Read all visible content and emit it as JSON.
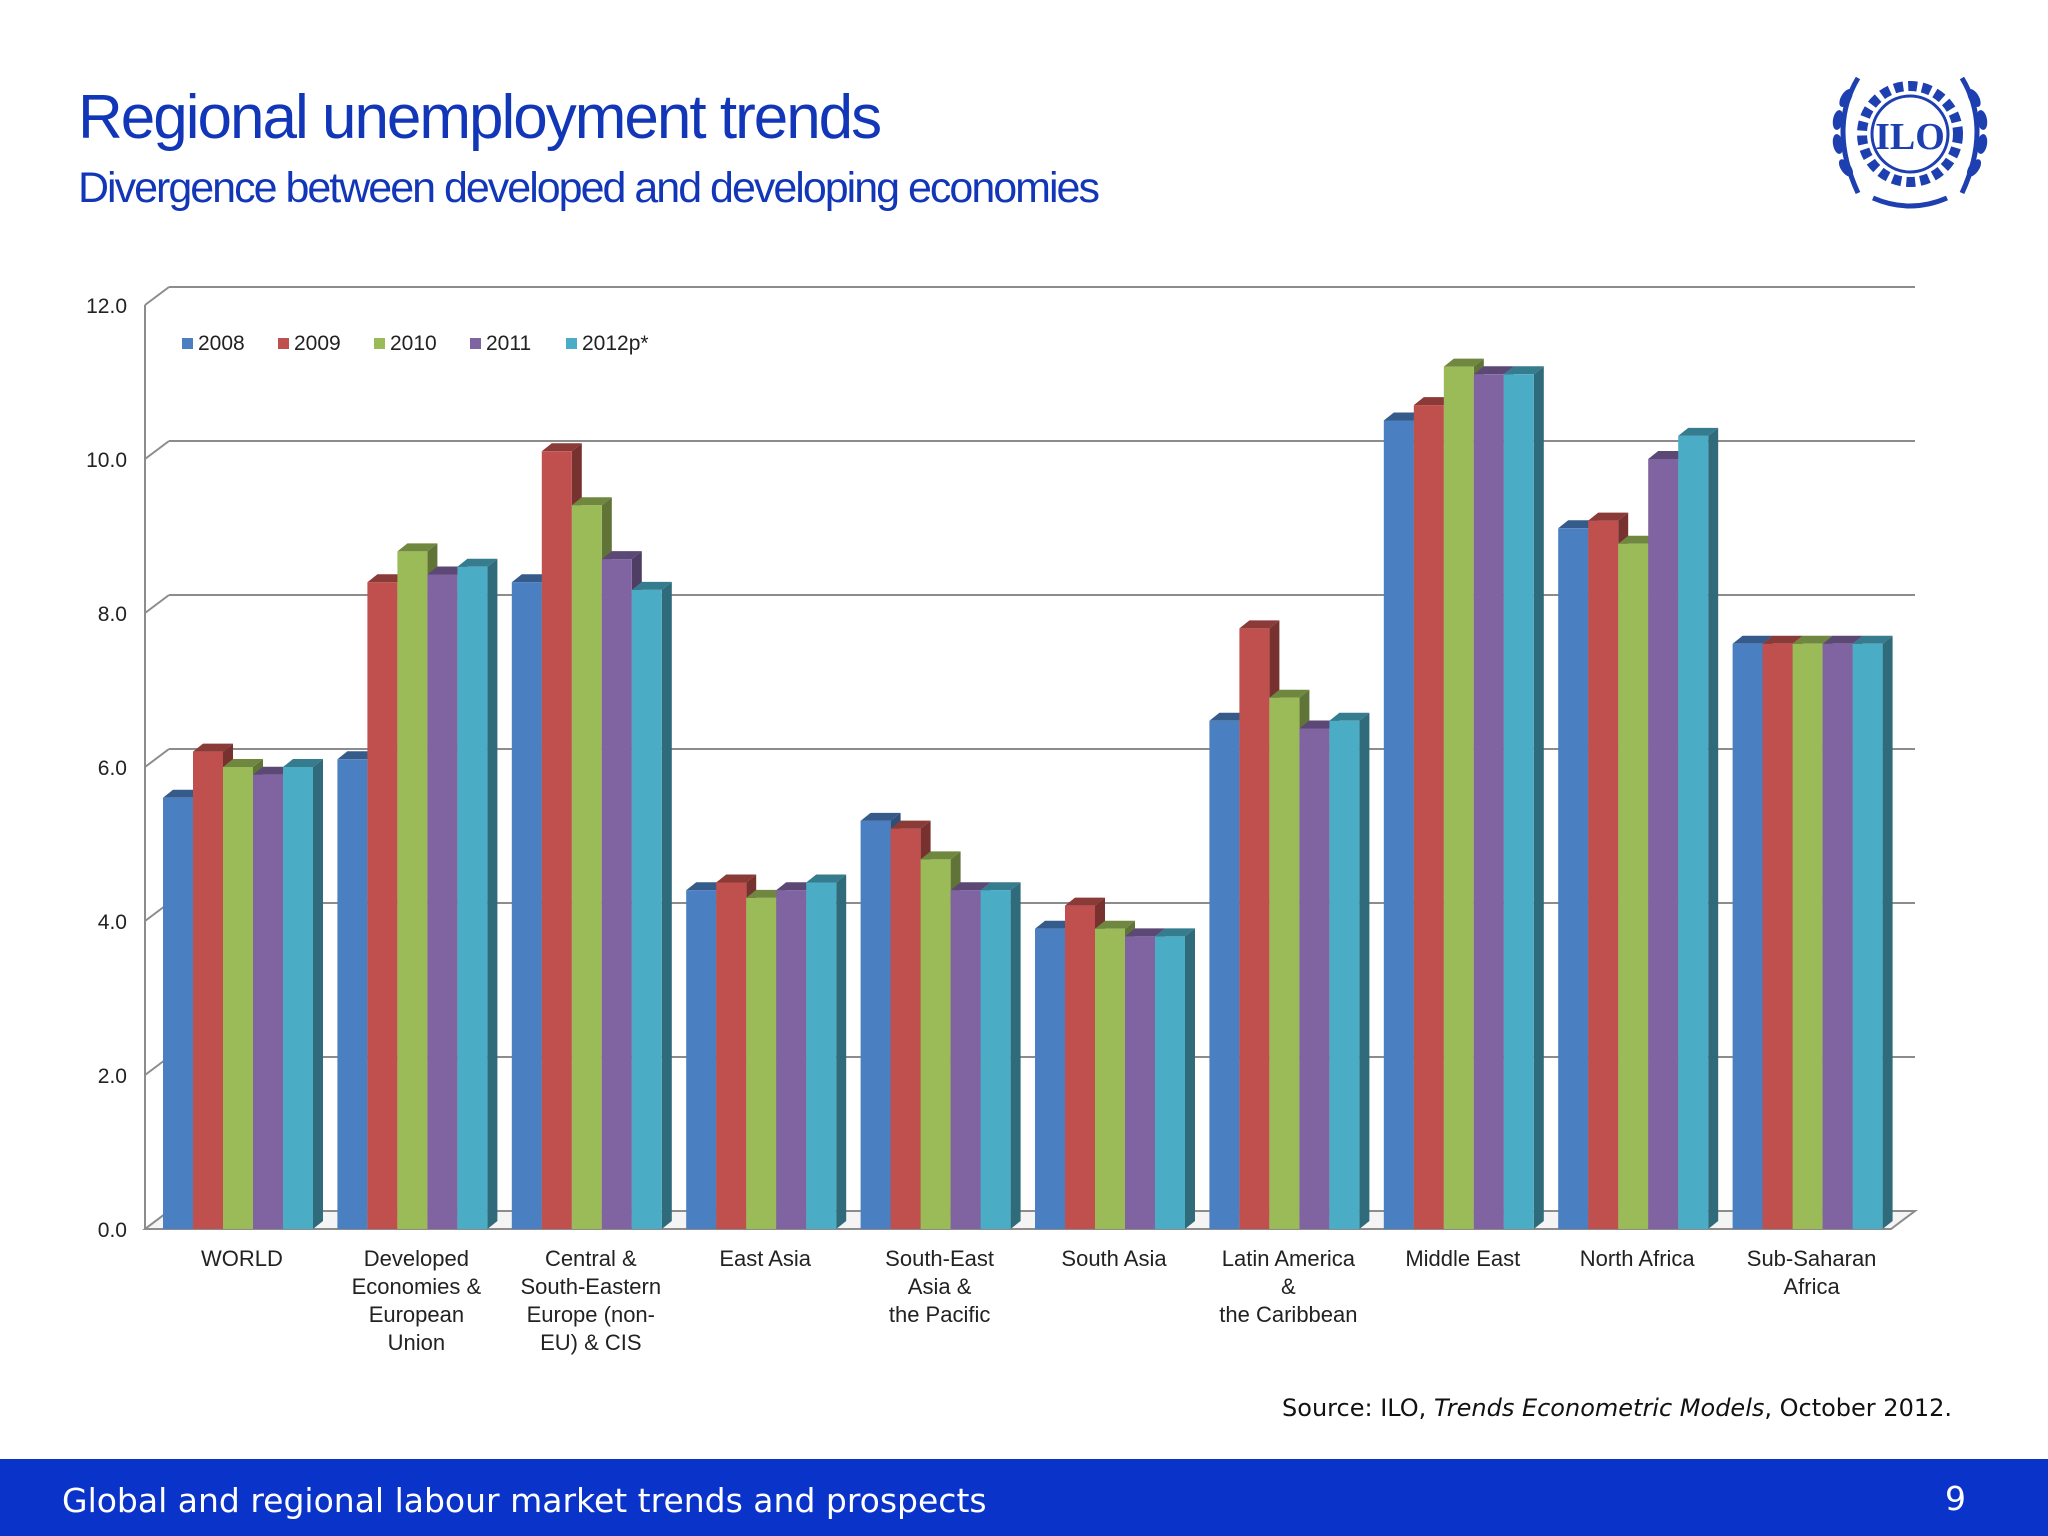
{
  "slide": {
    "title": "Regional unemployment trends",
    "subtitle": "Divergence between developed and developing economies",
    "logo_text": "ILO",
    "source_prefix": "Source: ILO, ",
    "source_italic": "Trends Econometric Models",
    "source_suffix": ", October 2012.",
    "footer_text": "Global and regional labour market trends and prospects",
    "page_number": "9"
  },
  "colors": {
    "title": "#1236b8",
    "footer": "#0a33c9",
    "series": [
      "#4a7fc1",
      "#c0504d",
      "#9bbb59",
      "#8064a2",
      "#4bacc6"
    ]
  },
  "chart_data": {
    "type": "bar",
    "style": "3d-clustered",
    "ylim": [
      0,
      12
    ],
    "yticks": [
      "0.0",
      "2.0",
      "4.0",
      "6.0",
      "8.0",
      "10.0",
      "12.0"
    ],
    "grid": true,
    "legend": "top-left",
    "categories": [
      [
        "WORLD"
      ],
      [
        "Developed",
        "Economies &",
        "European",
        "Union"
      ],
      [
        "Central &",
        "South-Eastern",
        "Europe (non-",
        "EU) & CIS"
      ],
      [
        "East Asia"
      ],
      [
        "South-East",
        "Asia &",
        "the Pacific"
      ],
      [
        "South Asia"
      ],
      [
        "Latin America",
        "&",
        "the Caribbean"
      ],
      [
        "Middle East"
      ],
      [
        "North Africa"
      ],
      [
        "Sub-Saharan",
        "Africa"
      ]
    ],
    "series": [
      {
        "name": "2008",
        "values": [
          5.6,
          6.1,
          8.4,
          4.4,
          5.3,
          3.9,
          6.6,
          10.5,
          9.1,
          7.6
        ]
      },
      {
        "name": "2009",
        "values": [
          6.2,
          8.4,
          10.1,
          4.5,
          5.2,
          4.2,
          7.8,
          10.7,
          9.2,
          7.6
        ]
      },
      {
        "name": "2010",
        "values": [
          6.0,
          8.8,
          9.4,
          4.3,
          4.8,
          3.9,
          6.9,
          11.2,
          8.9,
          7.6
        ]
      },
      {
        "name": "2011",
        "values": [
          5.9,
          8.5,
          8.7,
          4.4,
          4.4,
          3.8,
          6.5,
          11.1,
          10.0,
          7.6
        ]
      },
      {
        "name": "2012p*",
        "values": [
          6.0,
          8.6,
          8.3,
          4.5,
          4.4,
          3.8,
          6.6,
          11.1,
          10.3,
          7.6
        ]
      }
    ]
  }
}
